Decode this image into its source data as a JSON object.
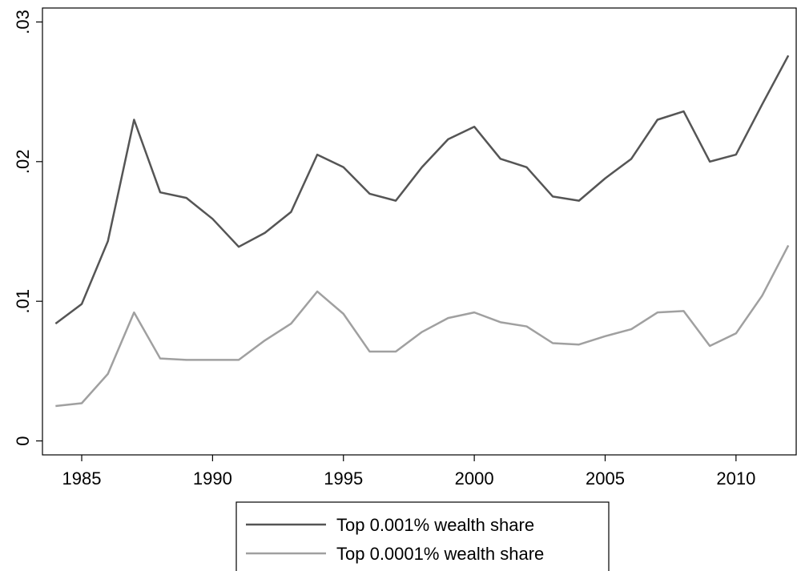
{
  "chart_data": {
    "type": "line",
    "x": [
      1984,
      1985,
      1986,
      1987,
      1988,
      1989,
      1990,
      1991,
      1992,
      1993,
      1994,
      1995,
      1996,
      1997,
      1998,
      1999,
      2000,
      2001,
      2002,
      2003,
      2004,
      2005,
      2006,
      2007,
      2008,
      2009,
      2010,
      2011,
      2012
    ],
    "series": [
      {
        "name": "Top 0.001% wealth share",
        "color": "#555555",
        "values": [
          0.0084,
          0.0098,
          0.0143,
          0.023,
          0.0178,
          0.0174,
          0.0159,
          0.0139,
          0.0149,
          0.0164,
          0.0205,
          0.0196,
          0.0177,
          0.0172,
          0.0196,
          0.0216,
          0.0225,
          0.0202,
          0.0196,
          0.0175,
          0.0172,
          0.0188,
          0.0202,
          0.023,
          0.0236,
          0.02,
          0.0205,
          0.0241,
          0.0276
        ]
      },
      {
        "name": "Top 0.0001% wealth share",
        "color": "#a0a0a0",
        "values": [
          0.0025,
          0.0027,
          0.0048,
          0.0092,
          0.0059,
          0.0058,
          0.0058,
          0.0058,
          0.0072,
          0.0084,
          0.0107,
          0.0091,
          0.0064,
          0.0064,
          0.0078,
          0.0088,
          0.0092,
          0.0085,
          0.0082,
          0.007,
          0.0069,
          0.0075,
          0.008,
          0.0092,
          0.0093,
          0.0068,
          0.0077,
          0.0104,
          0.014
        ]
      }
    ],
    "xlim": [
      1983.5,
      2012.3
    ],
    "xticks": [
      1985,
      1990,
      1995,
      2000,
      2005,
      2010
    ],
    "ylim": [
      -0.001,
      0.031
    ],
    "yticks": [
      0,
      {
        "value": 0.01,
        "label": ".01"
      },
      {
        "value": 0.02,
        "label": ".02"
      },
      {
        "value": 0.03,
        "label": ".03"
      }
    ],
    "grid": false,
    "legend": "bottom"
  }
}
